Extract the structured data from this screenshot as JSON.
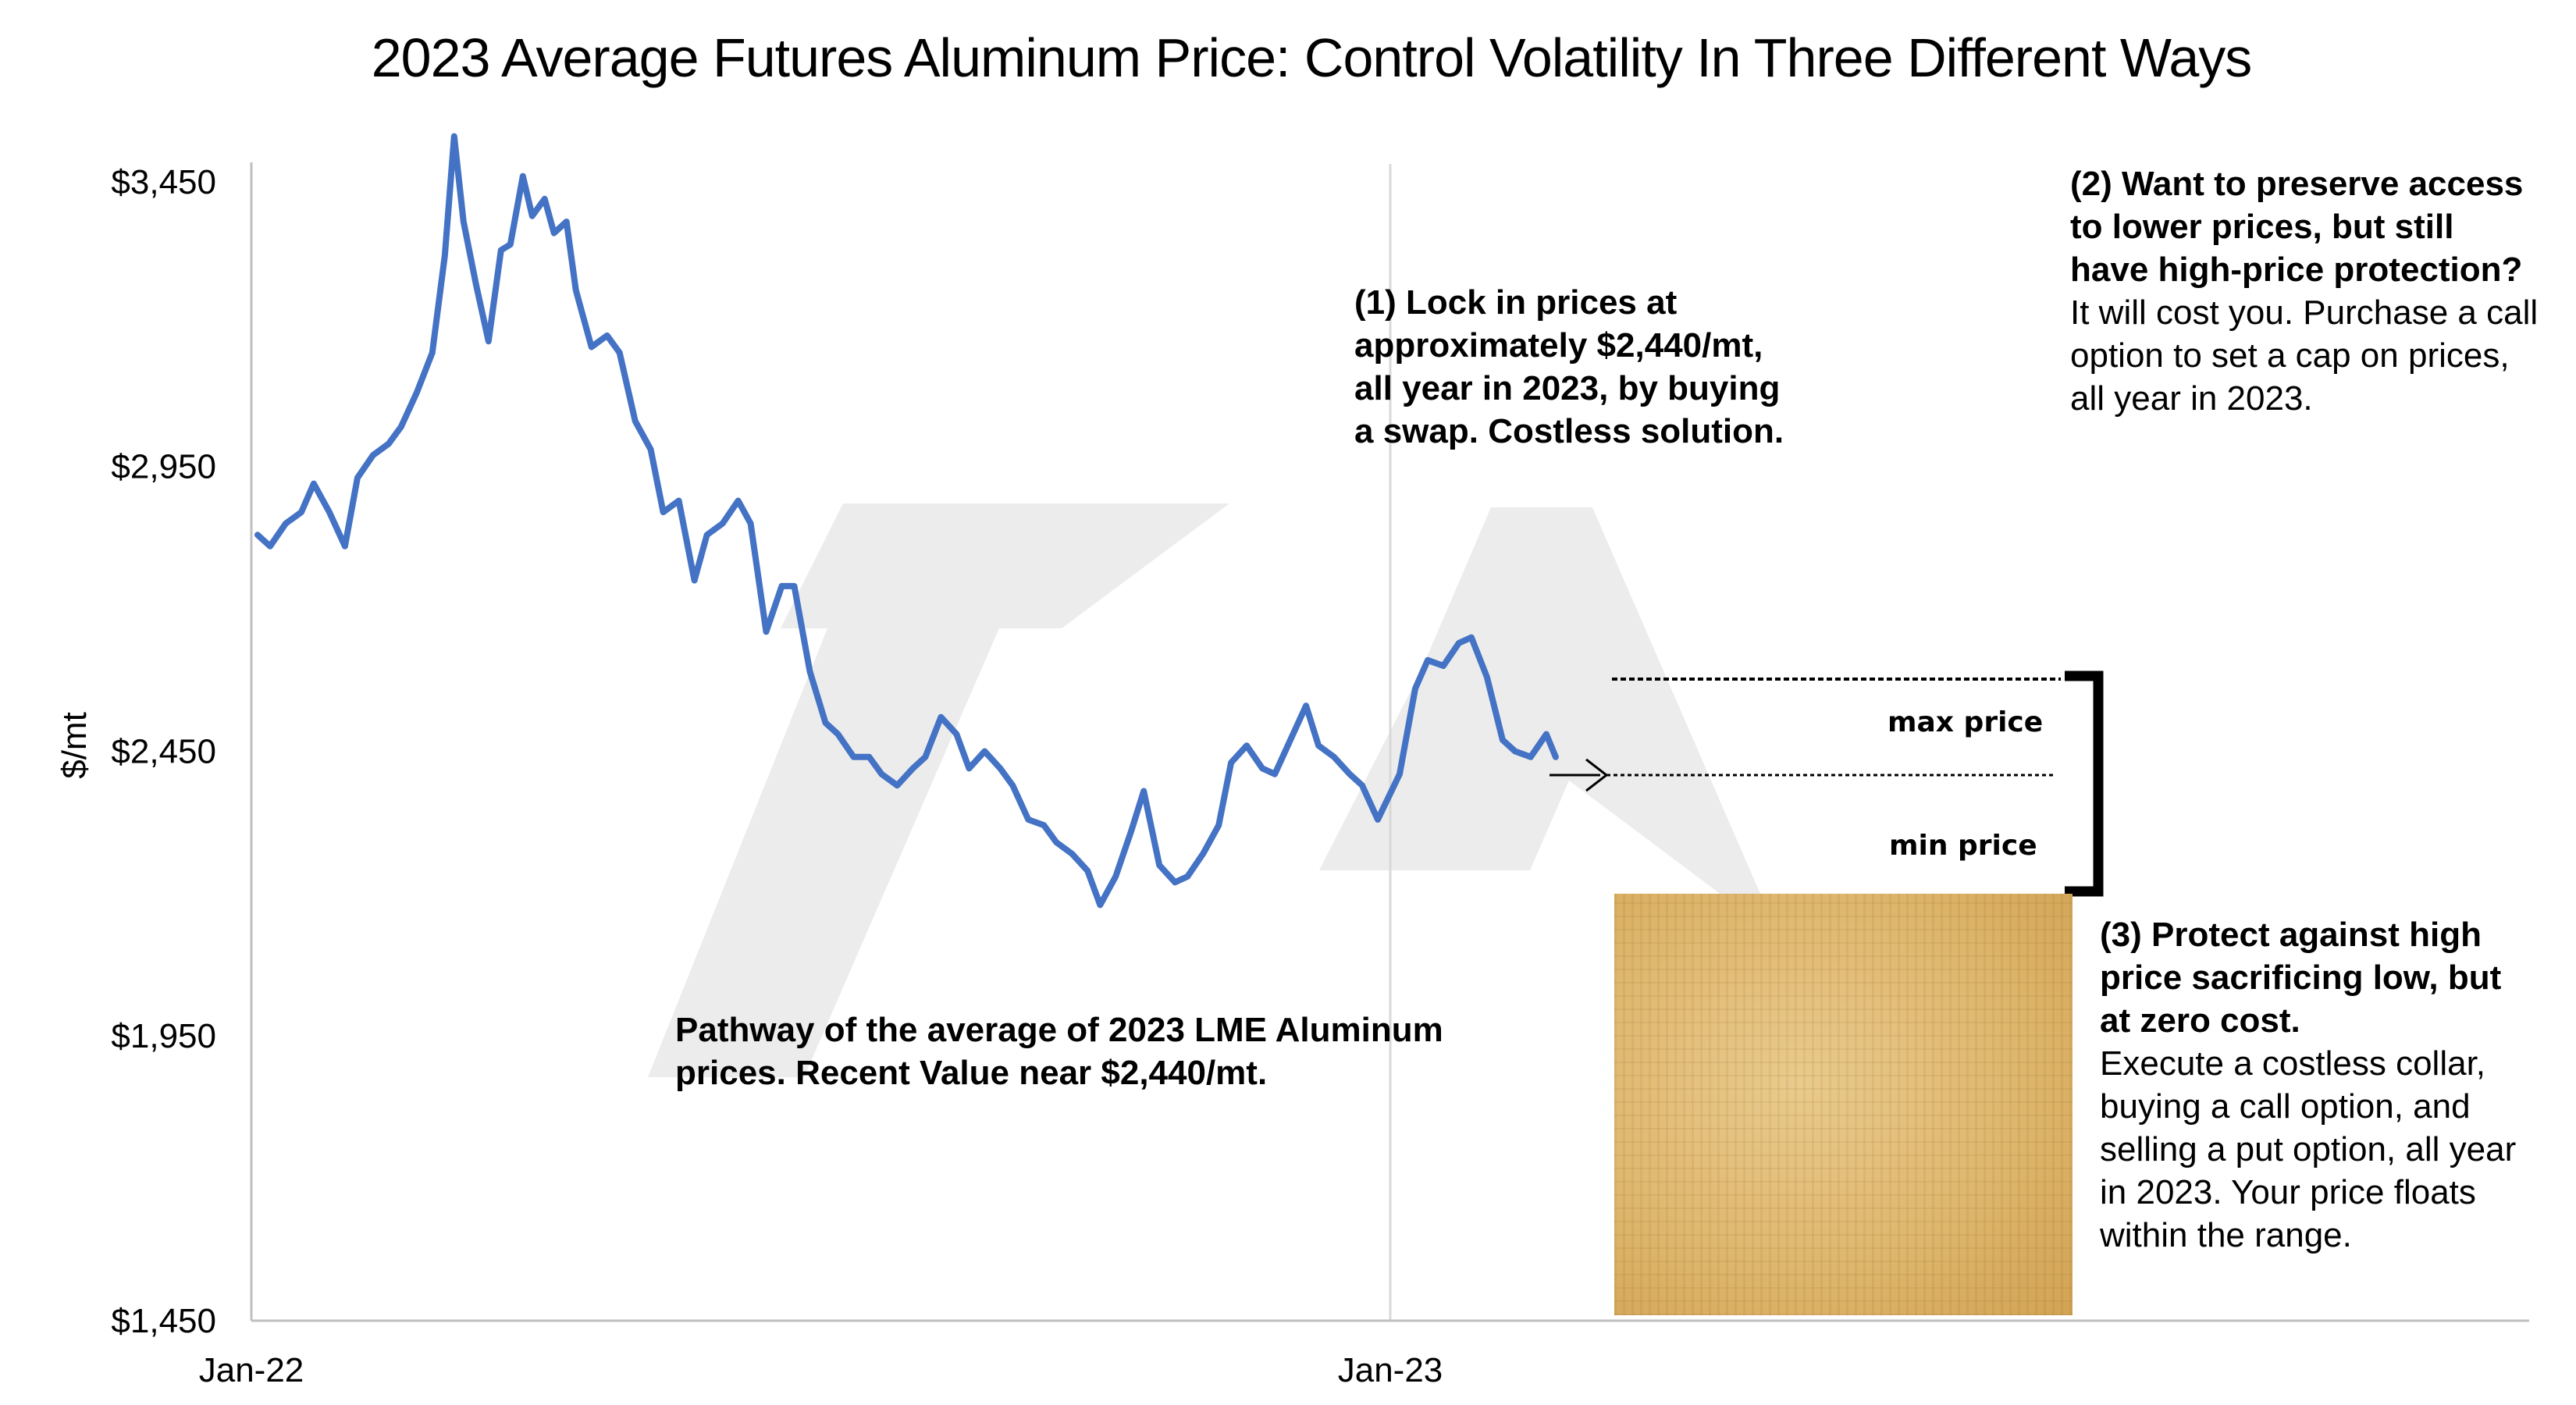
{
  "chart_data": {
    "type": "line",
    "title": "2023 Average Futures Aluminum Price: Control Volatility In Three Different Ways",
    "ylabel": "$/mt",
    "xlabel": "",
    "ylim": [
      1450,
      3550
    ],
    "y_ticks": [
      1450,
      1950,
      2450,
      2950,
      3450
    ],
    "y_tick_labels": [
      "$1,450",
      "$1,950",
      "$2,450",
      "$2,950",
      "$3,450"
    ],
    "x_range": [
      "2022-01-01",
      "2024-01-01"
    ],
    "x_tick_labels": [
      {
        "date": "2022-01-01",
        "label": "Jan-22"
      },
      {
        "date": "2023-01-01",
        "label": "Jan-23"
      }
    ],
    "grid": "vertical",
    "series": [
      {
        "name": "",
        "color": "#4472c4",
        "points": [
          [
            "2022-01-03",
            2830
          ],
          [
            "2022-01-07",
            2810
          ],
          [
            "2022-01-12",
            2850
          ],
          [
            "2022-01-17",
            2870
          ],
          [
            "2022-01-21",
            2920
          ],
          [
            "2022-01-26",
            2870
          ],
          [
            "2022-01-31",
            2810
          ],
          [
            "2022-02-04",
            2930
          ],
          [
            "2022-02-09",
            2970
          ],
          [
            "2022-02-14",
            2990
          ],
          [
            "2022-02-18",
            3020
          ],
          [
            "2022-02-23",
            3080
          ],
          [
            "2022-02-28",
            3150
          ],
          [
            "2022-03-04",
            3320
          ],
          [
            "2022-03-07",
            3530
          ],
          [
            "2022-03-10",
            3380
          ],
          [
            "2022-03-14",
            3270
          ],
          [
            "2022-03-18",
            3170
          ],
          [
            "2022-03-22",
            3330
          ],
          [
            "2022-03-25",
            3340
          ],
          [
            "2022-03-29",
            3460
          ],
          [
            "2022-04-01",
            3390
          ],
          [
            "2022-04-05",
            3420
          ],
          [
            "2022-04-08",
            3360
          ],
          [
            "2022-04-12",
            3380
          ],
          [
            "2022-04-15",
            3260
          ],
          [
            "2022-04-20",
            3160
          ],
          [
            "2022-04-25",
            3180
          ],
          [
            "2022-04-29",
            3150
          ],
          [
            "2022-05-04",
            3030
          ],
          [
            "2022-05-09",
            2980
          ],
          [
            "2022-05-13",
            2870
          ],
          [
            "2022-05-18",
            2890
          ],
          [
            "2022-05-23",
            2750
          ],
          [
            "2022-05-27",
            2830
          ],
          [
            "2022-06-01",
            2850
          ],
          [
            "2022-06-06",
            2890
          ],
          [
            "2022-06-10",
            2850
          ],
          [
            "2022-06-15",
            2660
          ],
          [
            "2022-06-20",
            2740
          ],
          [
            "2022-06-24",
            2740
          ],
          [
            "2022-06-29",
            2590
          ],
          [
            "2022-07-04",
            2500
          ],
          [
            "2022-07-08",
            2480
          ],
          [
            "2022-07-13",
            2440
          ],
          [
            "2022-07-18",
            2440
          ],
          [
            "2022-07-22",
            2410
          ],
          [
            "2022-07-27",
            2390
          ],
          [
            "2022-08-01",
            2420
          ],
          [
            "2022-08-05",
            2440
          ],
          [
            "2022-08-10",
            2510
          ],
          [
            "2022-08-15",
            2480
          ],
          [
            "2022-08-19",
            2420
          ],
          [
            "2022-08-24",
            2450
          ],
          [
            "2022-08-29",
            2420
          ],
          [
            "2022-09-02",
            2390
          ],
          [
            "2022-09-07",
            2330
          ],
          [
            "2022-09-12",
            2320
          ],
          [
            "2022-09-16",
            2290
          ],
          [
            "2022-09-21",
            2270
          ],
          [
            "2022-09-26",
            2240
          ],
          [
            "2022-09-30",
            2180
          ],
          [
            "2022-10-05",
            2230
          ],
          [
            "2022-10-10",
            2310
          ],
          [
            "2022-10-14",
            2380
          ],
          [
            "2022-10-19",
            2250
          ],
          [
            "2022-10-24",
            2220
          ],
          [
            "2022-10-28",
            2230
          ],
          [
            "2022-11-02",
            2270
          ],
          [
            "2022-11-07",
            2320
          ],
          [
            "2022-11-11",
            2430
          ],
          [
            "2022-11-16",
            2460
          ],
          [
            "2022-11-21",
            2420
          ],
          [
            "2022-11-25",
            2410
          ],
          [
            "2022-11-30",
            2470
          ],
          [
            "2022-12-05",
            2530
          ],
          [
            "2022-12-09",
            2460
          ],
          [
            "2022-12-14",
            2440
          ],
          [
            "2022-12-19",
            2410
          ],
          [
            "2022-12-23",
            2390
          ],
          [
            "2022-12-28",
            2330
          ],
          [
            "2023-01-04",
            2410
          ],
          [
            "2023-01-09",
            2560
          ],
          [
            "2023-01-13",
            2610
          ],
          [
            "2023-01-18",
            2600
          ],
          [
            "2023-01-23",
            2640
          ],
          [
            "2023-01-27",
            2650
          ],
          [
            "2023-02-01",
            2580
          ],
          [
            "2023-02-06",
            2470
          ],
          [
            "2023-02-10",
            2450
          ],
          [
            "2023-02-15",
            2440
          ],
          [
            "2023-02-20",
            2480
          ],
          [
            "2023-02-23",
            2440
          ]
        ]
      }
    ],
    "annotations": {
      "max_price_label": "max price",
      "min_price_label": "min price"
    }
  },
  "notes": {
    "note1": "(1) Lock in prices at approximately $2,440/mt, all year in 2023, by buying a swap. Costless solution.",
    "note2_bold": "(2) Want to preserve access to lower prices, but still have high-price protection?",
    "note2_rest": " It will cost you. Purchase a call option to set a cap on prices, all year in 2023.",
    "note3_bold": "(3) Protect against high price sacrificing low, but at zero cost.",
    "note3_rest": "Execute a costless collar, buying a call option, and selling a put option, all year in 2023. Your price floats within the range.",
    "pathway": "Pathway of the average of 2023 LME Aluminum prices.  Recent Value near $2,440/mt."
  },
  "colors": {
    "line": "#4472c4",
    "axis": "#bfbfbf",
    "watermark": "#ececec"
  }
}
